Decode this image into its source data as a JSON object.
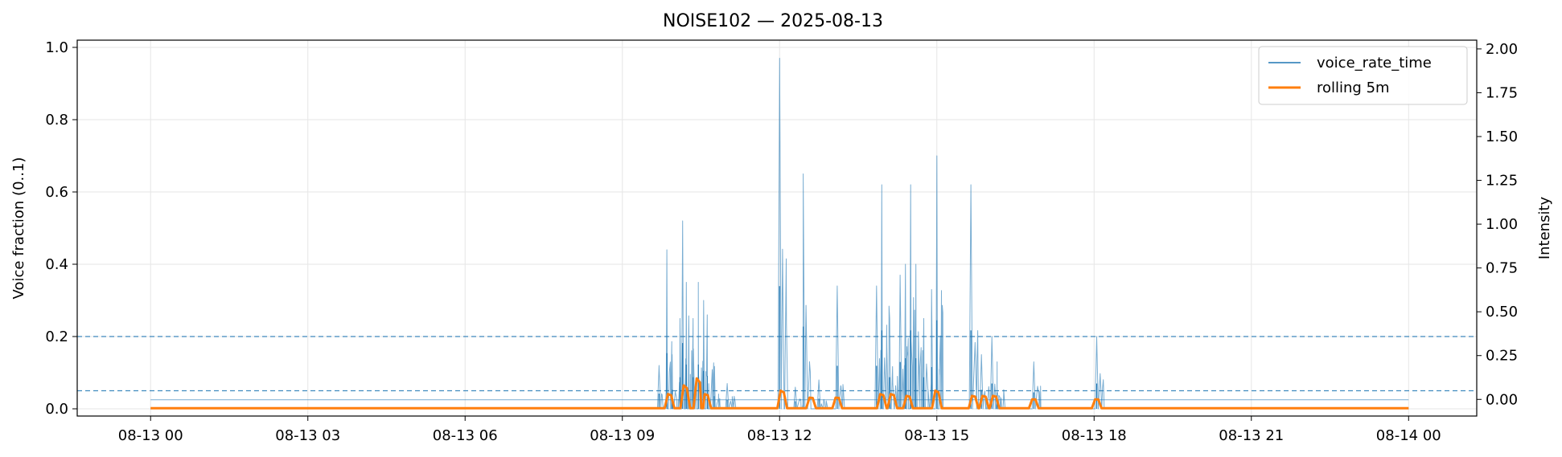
{
  "chart_data": {
    "type": "line",
    "title": "NOISE102 — 2025-08-13",
    "xlabel": "",
    "ylabel": "Voice fraction (0..1)",
    "y2label": "Intensity",
    "xlim_hours": [
      -1.4,
      25.3
    ],
    "ylim": [
      -0.02,
      1.02
    ],
    "y2lim": [
      -0.095,
      2.05
    ],
    "x_ticks": [
      {
        "h": 0,
        "label": "08-13 00"
      },
      {
        "h": 3,
        "label": "08-13 03"
      },
      {
        "h": 6,
        "label": "08-13 06"
      },
      {
        "h": 9,
        "label": "08-13 09"
      },
      {
        "h": 12,
        "label": "08-13 12"
      },
      {
        "h": 15,
        "label": "08-13 15"
      },
      {
        "h": 18,
        "label": "08-13 18"
      },
      {
        "h": 21,
        "label": "08-13 21"
      },
      {
        "h": 24,
        "label": "08-14 00"
      }
    ],
    "y_ticks": [
      "0.0",
      "0.2",
      "0.4",
      "0.6",
      "0.8",
      "1.0"
    ],
    "y2_ticks": [
      "0.00",
      "0.25",
      "0.50",
      "0.75",
      "1.00",
      "1.25",
      "1.50",
      "1.75",
      "2.00"
    ],
    "grid": true,
    "legend_position": "upper-right",
    "thresholds": [
      0.2,
      0.05
    ],
    "baseline": 0.025,
    "series": [
      {
        "name": "voice_rate_time",
        "color": "#1f77b4",
        "axis": "left",
        "peaks": [
          [
            9.7,
            0.12
          ],
          [
            9.85,
            0.44
          ],
          [
            9.95,
            0.15
          ],
          [
            10.1,
            0.25
          ],
          [
            10.15,
            0.52
          ],
          [
            10.22,
            0.35
          ],
          [
            10.35,
            0.25
          ],
          [
            10.45,
            0.35
          ],
          [
            10.55,
            0.3
          ],
          [
            10.62,
            0.26
          ],
          [
            10.75,
            0.1
          ],
          [
            11.0,
            0.07
          ],
          [
            12.0,
            0.97
          ],
          [
            12.3,
            0.06
          ],
          [
            12.45,
            0.65
          ],
          [
            12.75,
            0.08
          ],
          [
            13.1,
            0.34
          ],
          [
            13.85,
            0.34
          ],
          [
            13.95,
            0.62
          ],
          [
            14.1,
            0.25
          ],
          [
            14.3,
            0.37
          ],
          [
            14.4,
            0.4
          ],
          [
            14.5,
            0.62
          ],
          [
            14.6,
            0.4
          ],
          [
            14.75,
            0.25
          ],
          [
            14.9,
            0.33
          ],
          [
            15.0,
            0.7
          ],
          [
            15.65,
            0.62
          ],
          [
            15.85,
            0.15
          ],
          [
            16.05,
            0.2
          ],
          [
            16.15,
            0.13
          ],
          [
            16.85,
            0.13
          ],
          [
            18.05,
            0.2
          ]
        ]
      },
      {
        "name": "rolling 5m",
        "color": "#ff7f0e",
        "axis": "right",
        "peaks": [
          [
            9.9,
            0.03
          ],
          [
            10.2,
            0.08
          ],
          [
            10.45,
            0.12
          ],
          [
            10.6,
            0.03
          ],
          [
            12.05,
            0.05
          ],
          [
            12.6,
            0.01
          ],
          [
            13.1,
            0.01
          ],
          [
            13.95,
            0.03
          ],
          [
            14.15,
            0.03
          ],
          [
            14.45,
            0.02
          ],
          [
            15.0,
            0.05
          ],
          [
            15.7,
            0.02
          ],
          [
            15.9,
            0.02
          ],
          [
            16.1,
            0.02
          ],
          [
            16.85,
            0.0
          ],
          [
            18.05,
            0.0
          ]
        ]
      }
    ]
  }
}
